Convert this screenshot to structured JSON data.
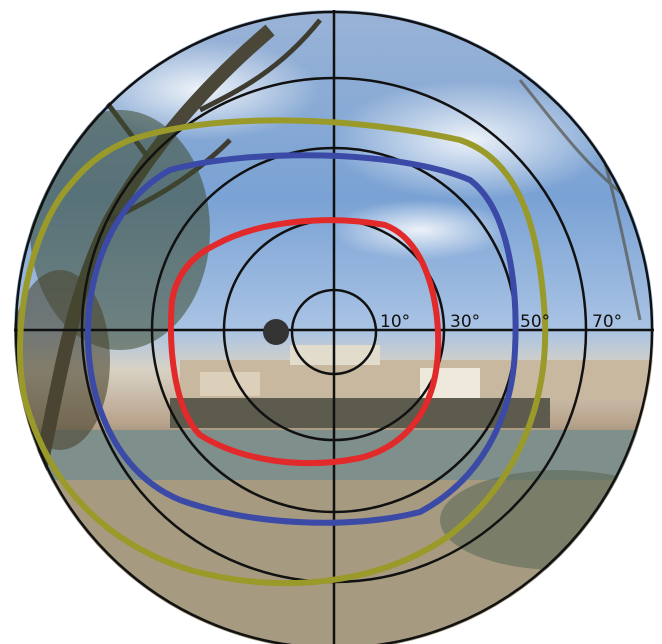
{
  "ring_labels": [
    "10°",
    "30°",
    "50°",
    "70°"
  ]
}
